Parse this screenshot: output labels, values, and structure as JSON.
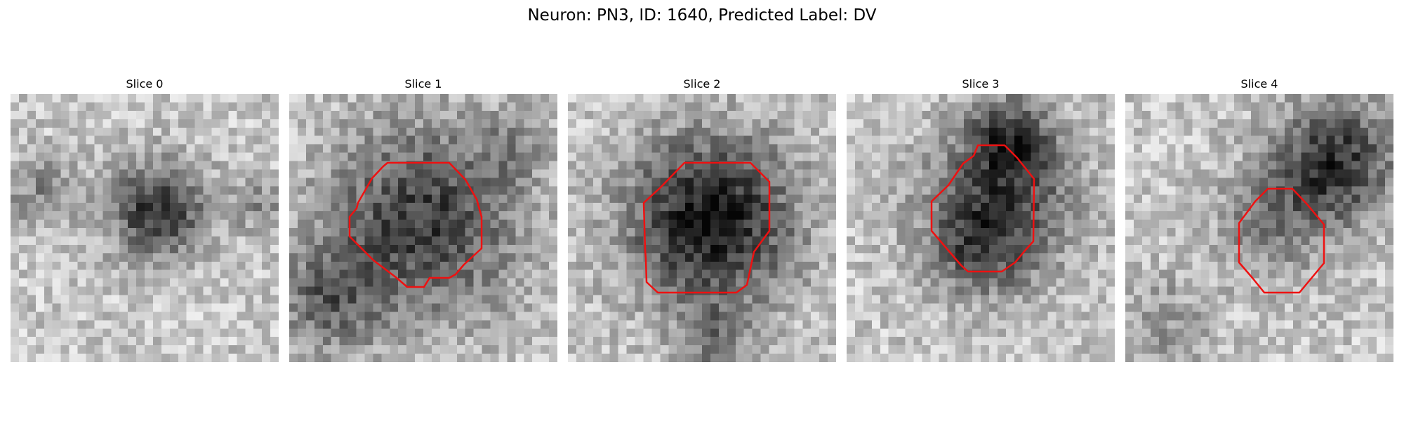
{
  "figure": {
    "title": "Neuron: PN3, ID: 1640, Predicted Label: DV",
    "contour_color": "#ee1111",
    "colormap": "gray",
    "panels": [
      {
        "title": "Slice 0",
        "has_contour": false
      },
      {
        "title": "Slice 1",
        "has_contour": true
      },
      {
        "title": "Slice 2",
        "has_contour": true
      },
      {
        "title": "Slice 3",
        "has_contour": true
      },
      {
        "title": "Slice 4",
        "has_contour": true
      }
    ]
  }
}
